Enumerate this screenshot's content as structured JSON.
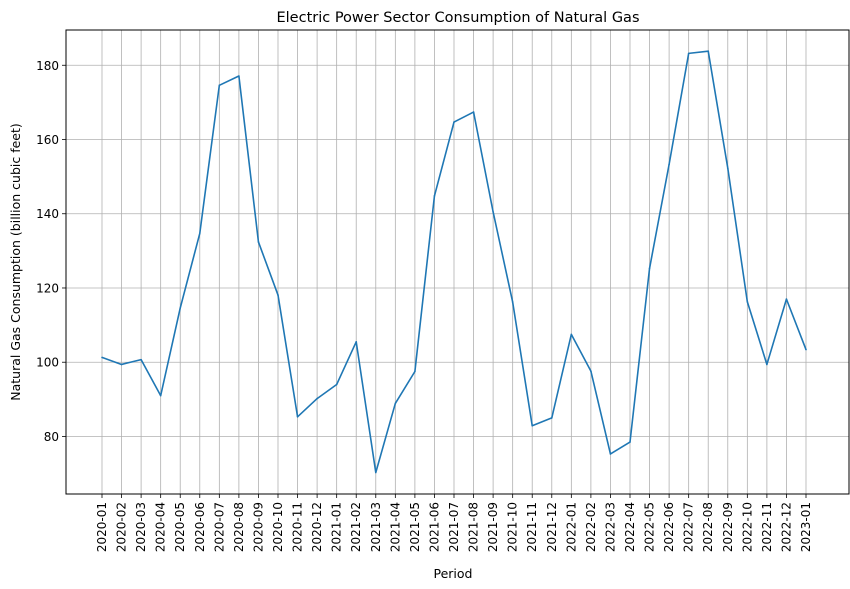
{
  "chart_data": {
    "type": "line",
    "title": "Electric Power Sector Consumption of Natural Gas",
    "xlabel": "Period",
    "ylabel": "Natural Gas Consumption (billion cubic feet)",
    "ylim": [
      64.5,
      189.5
    ],
    "yticks": [
      80,
      100,
      120,
      140,
      160,
      180
    ],
    "grid": true,
    "line_color": "#1f77b4",
    "categories": [
      "2020-01",
      "2020-02",
      "2020-03",
      "2020-04",
      "2020-05",
      "2020-06",
      "2020-07",
      "2020-08",
      "2020-09",
      "2020-10",
      "2020-11",
      "2020-12",
      "2021-01",
      "2021-02",
      "2021-03",
      "2021-04",
      "2021-05",
      "2021-06",
      "2021-07",
      "2021-08",
      "2021-09",
      "2021-10",
      "2021-11",
      "2021-12",
      "2022-01",
      "2022-02",
      "2022-03",
      "2022-04",
      "2022-05",
      "2022-06",
      "2022-07",
      "2022-08",
      "2022-09",
      "2022-10",
      "2022-11",
      "2022-12",
      "2023-01"
    ],
    "series": [
      {
        "values": [
          101.3,
          99.4,
          100.7,
          91.0,
          114.6,
          134.7,
          174.6,
          177.1,
          132.4,
          118.1,
          85.3,
          90.2,
          94.0,
          105.5,
          70.3,
          88.9,
          97.5,
          144.8,
          164.7,
          167.4,
          140.5,
          116.2,
          82.9,
          85.0,
          107.5,
          97.6,
          75.3,
          78.5,
          125.3,
          153.3,
          183.2,
          183.8,
          152.3,
          116.3,
          99.4,
          117.0,
          103.4
        ]
      }
    ]
  }
}
